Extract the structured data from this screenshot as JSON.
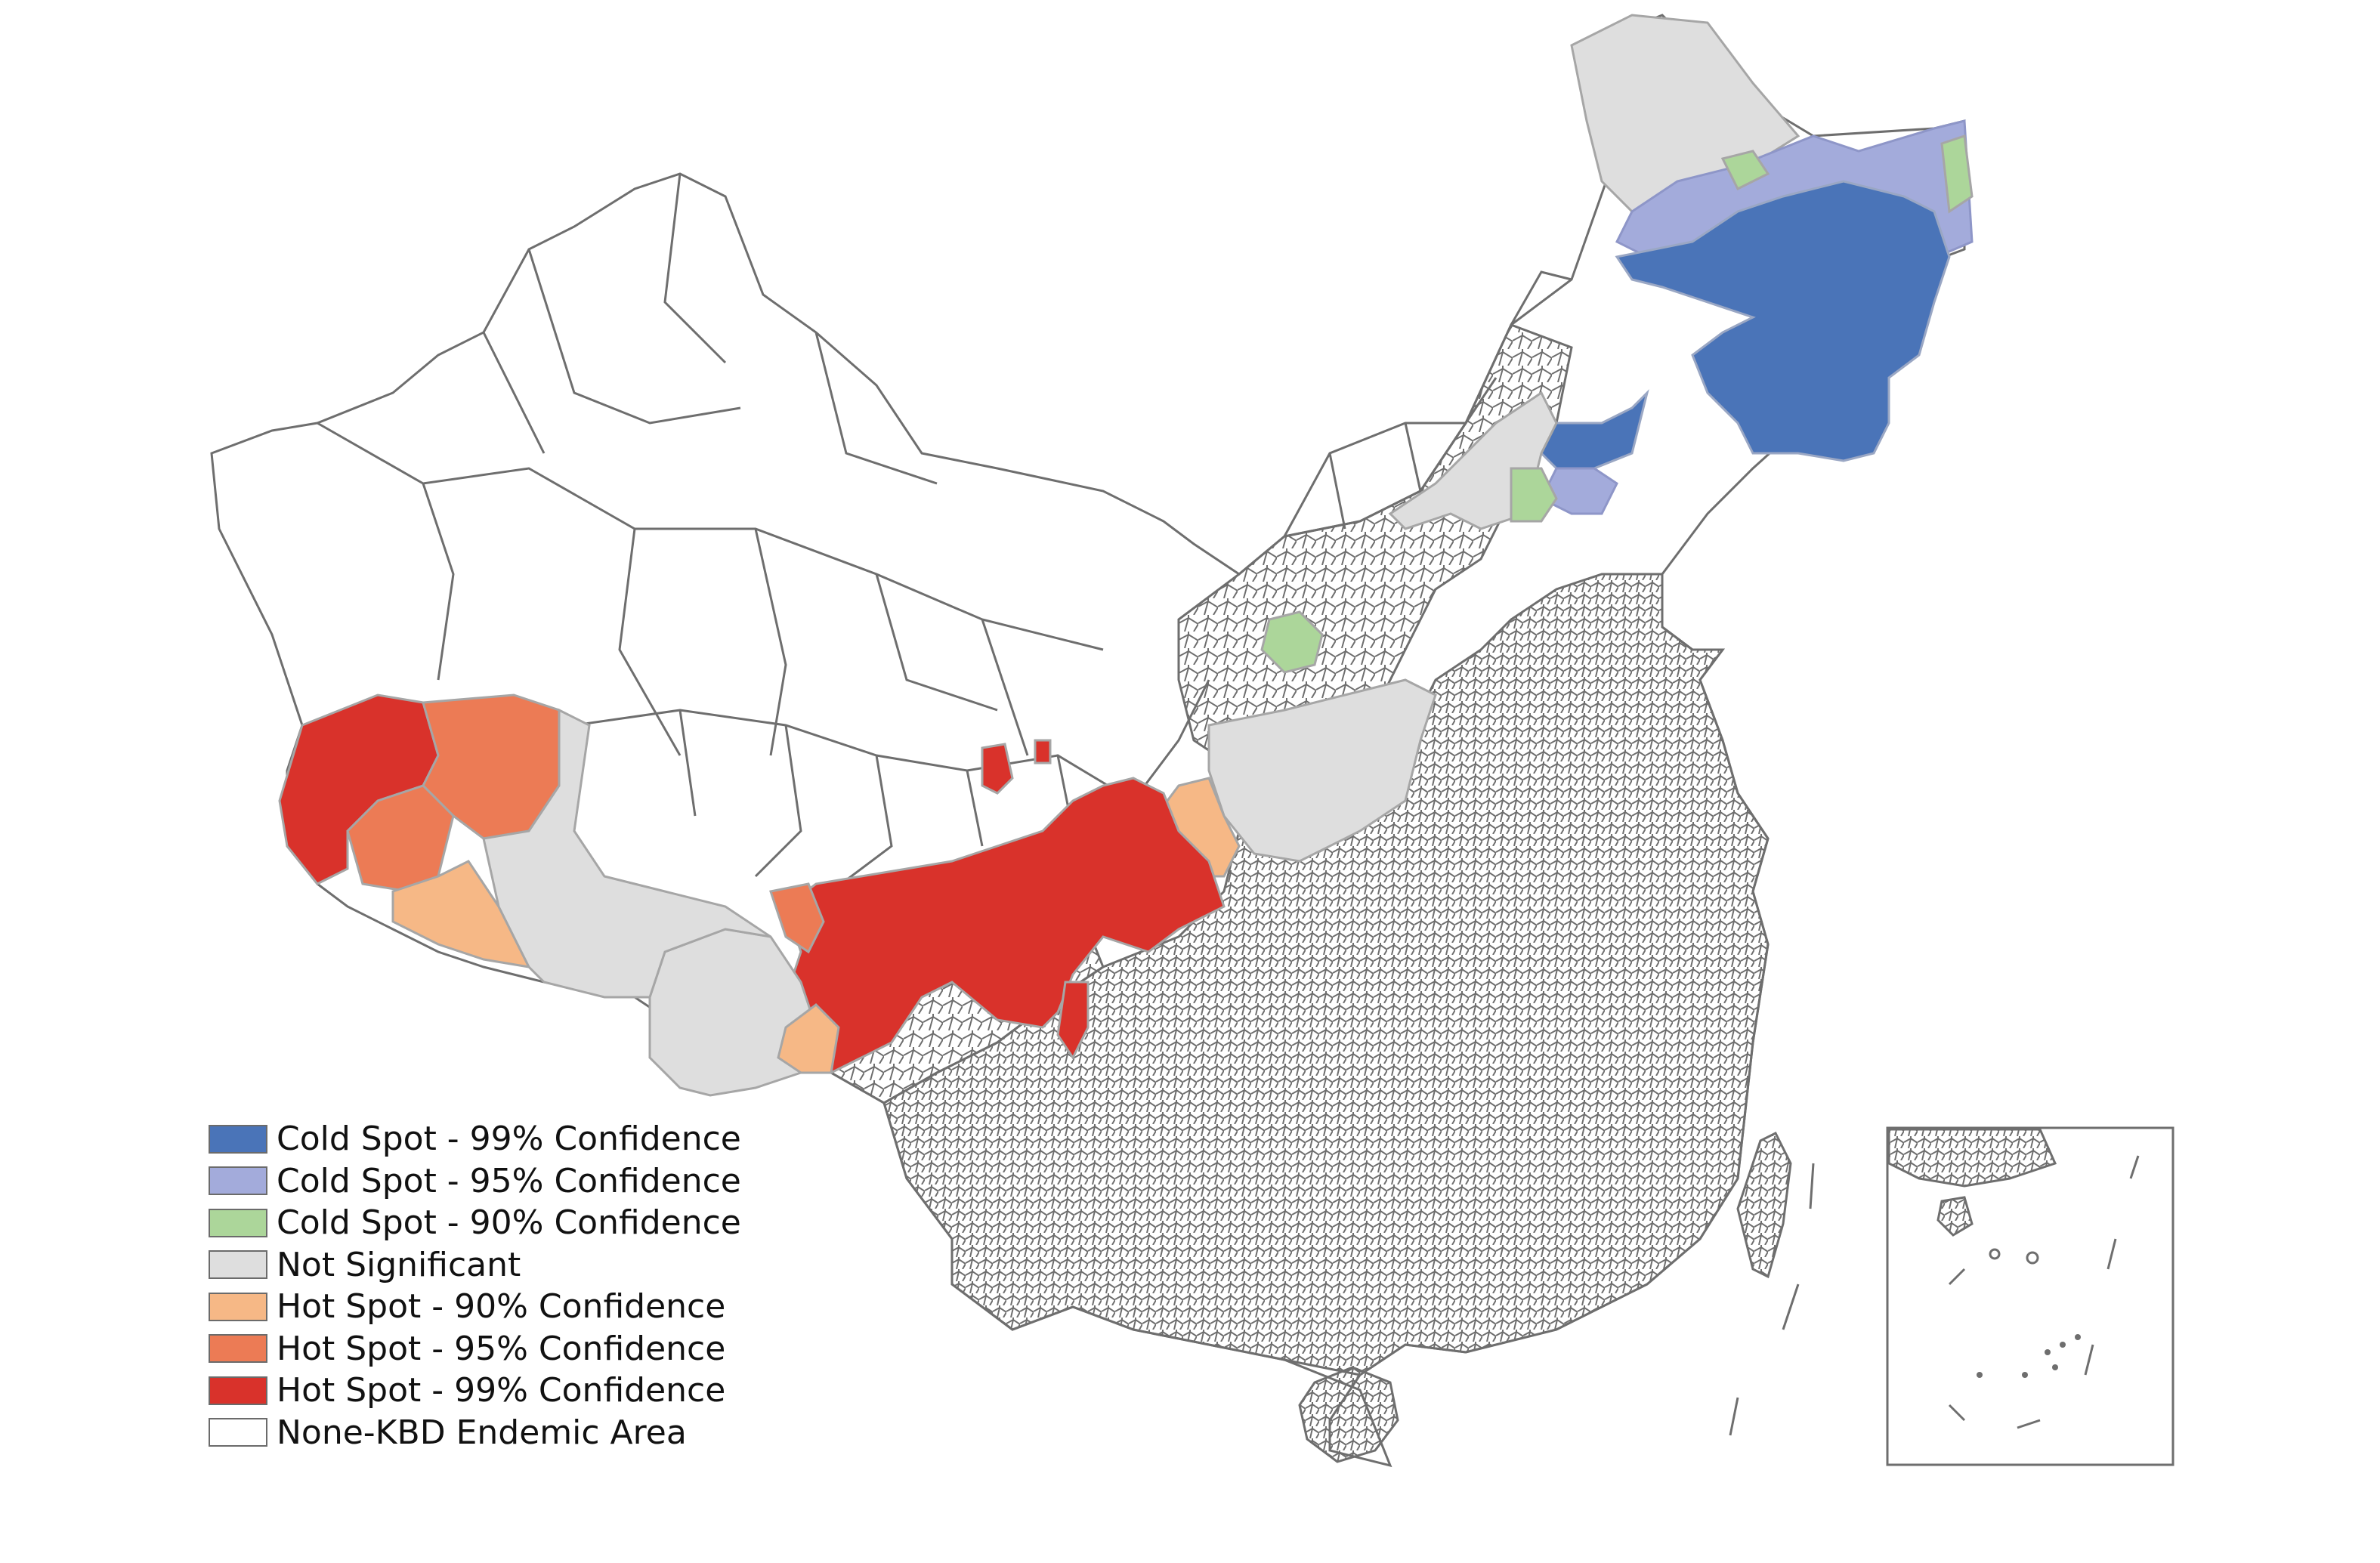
{
  "map": {
    "boundary_color": "#6e6e6e",
    "classes": {
      "cold99": "#4a74b8",
      "cold95": "#a3abdb",
      "cold90": "#acd69a",
      "ns": "#dedede",
      "hot90": "#f6b886",
      "hot95": "#ec7b55",
      "hot99": "#d9322b",
      "none": "#ffffff"
    }
  },
  "legend": {
    "items": [
      {
        "key": "cold99",
        "label": "Cold Spot - 99% Confidence",
        "color": "#4a74b8"
      },
      {
        "key": "cold95",
        "label": "Cold Spot - 95% Confidence",
        "color": "#a3abdb"
      },
      {
        "key": "cold90",
        "label": "Cold Spot - 90% Confidence",
        "color": "#acd69a"
      },
      {
        "key": "ns",
        "label": "Not Significant",
        "color": "#dedede"
      },
      {
        "key": "hot90",
        "label": "Hot Spot - 90% Confidence",
        "color": "#f6b886"
      },
      {
        "key": "hot95",
        "label": "Hot Spot - 95% Confidence",
        "color": "#ec7b55"
      },
      {
        "key": "hot99",
        "label": "Hot Spot - 99% Confidence",
        "color": "#d9322b"
      },
      {
        "key": "none",
        "label": "None-KBD Endemic Area",
        "color": "#ffffff"
      }
    ]
  }
}
